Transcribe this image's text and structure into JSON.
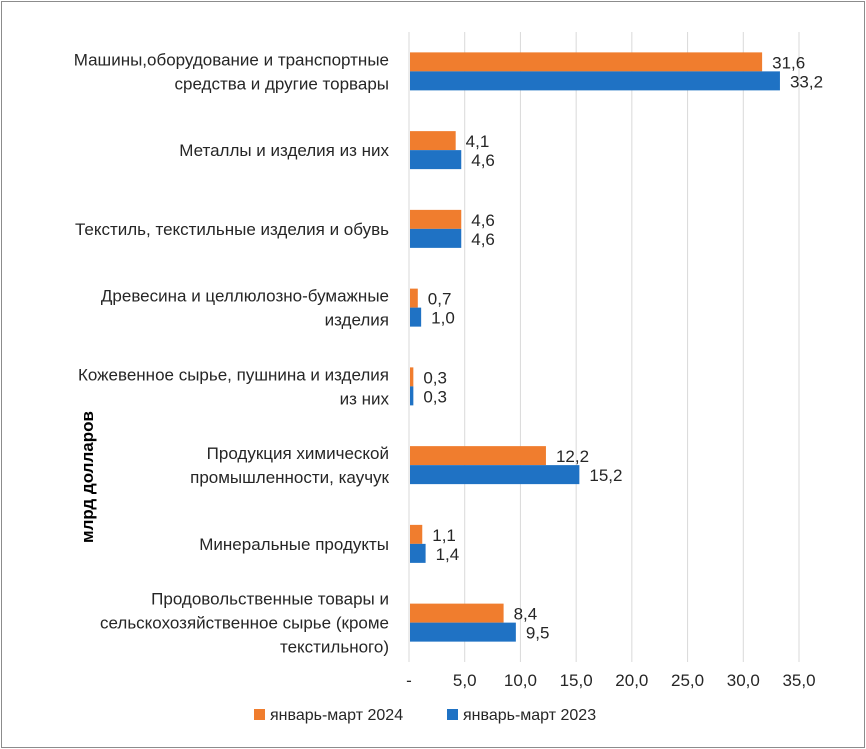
{
  "chart_data": {
    "type": "bar",
    "orientation": "horizontal",
    "title": "",
    "ylabel": "млрд долларов",
    "xlabel": "",
    "xlim": [
      0,
      35
    ],
    "x_ticks": [
      "-",
      "5,0",
      "10,0",
      "15,0",
      "20,0",
      "25,0",
      "30,0",
      "35,0"
    ],
    "grid": true,
    "legend_position": "bottom",
    "categories": [
      [
        "Машины,оборудование и транспортные",
        "средства и другие торвары"
      ],
      [
        "Металлы и изделия из них"
      ],
      [
        "Текстиль, текстильные изделия и обувь"
      ],
      [
        "Древесина и целлюлозно-бумажные",
        "изделия"
      ],
      [
        "Кожевенное сырье, пушнина и изделия",
        "из них"
      ],
      [
        "Продукция химической",
        "промышленности, каучук"
      ],
      [
        "Минеральные продукты"
      ],
      [
        "Продовольственные товары и",
        "сельскохозяйственное сырье (кроме",
        "текстильного)"
      ]
    ],
    "series": [
      {
        "name": "январь-март 2024",
        "color": "#f07d2e",
        "values": [
          31.6,
          4.1,
          4.6,
          0.7,
          0.3,
          12.2,
          1.1,
          8.4
        ],
        "labels": [
          "31,6",
          "4,1",
          "4,6",
          "0,7",
          "0,3",
          "12,2",
          "1,1",
          "8,4"
        ]
      },
      {
        "name": "январь-март 2023",
        "color": "#1f72c4",
        "values": [
          33.2,
          4.6,
          4.6,
          1.0,
          0.3,
          15.2,
          1.4,
          9.5
        ],
        "labels": [
          "33,2",
          "4,6",
          "4,6",
          "1,0",
          "0,3",
          "15,2",
          "1,4",
          "9,5"
        ]
      }
    ]
  }
}
